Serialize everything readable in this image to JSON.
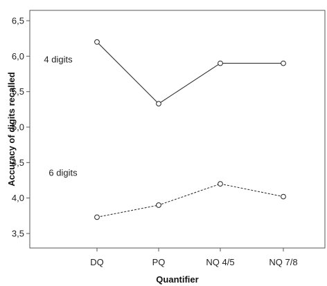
{
  "chart_data": {
    "type": "line",
    "categories": [
      "DQ",
      "PQ",
      "NQ 4/5",
      "NQ 7/8"
    ],
    "series": [
      {
        "name": "4 digits",
        "values": [
          6.2,
          5.33,
          5.9,
          5.9
        ],
        "line_style": "solid",
        "color": "#333333"
      },
      {
        "name": "6 digits",
        "values": [
          3.73,
          3.9,
          4.2,
          4.02
        ],
        "line_style": "dashed",
        "color": "#333333"
      }
    ],
    "xlabel": "Quantifier",
    "ylabel": "Accuracy of digits recalled",
    "ylim": [
      3.5,
      6.5
    ],
    "yticks": [
      "3,5",
      "4,0",
      "4,5",
      "5,0",
      "5,5",
      "6,0",
      "6,5"
    ],
    "grid": false,
    "legend": "none",
    "marker": "open-circle"
  }
}
